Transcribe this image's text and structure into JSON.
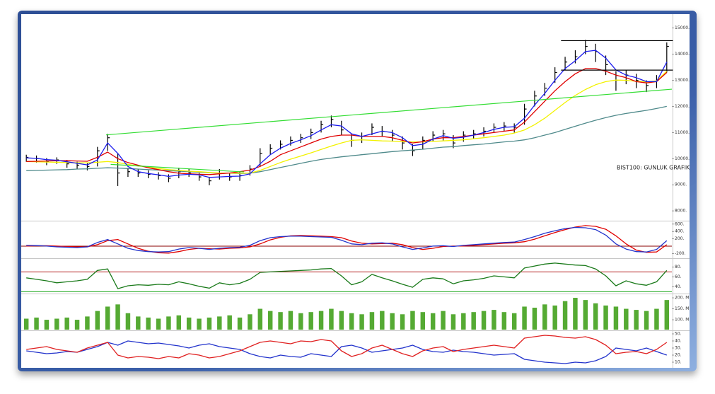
{
  "chart_data": [
    {
      "type": "ohlc",
      "annotation": "BIST100: GUNLUK GRAFIK",
      "color": "#000000",
      "xlim": [
        -0.5,
        63.5
      ],
      "ylim": [
        7650,
        15480
      ],
      "yticks": [
        {
          "value": 15000,
          "label": "15000."
        },
        {
          "value": 14000,
          "label": "14000."
        },
        {
          "value": 13000,
          "label": "13000."
        },
        {
          "value": 12000,
          "label": "12000."
        },
        {
          "value": 11000,
          "label": "11000."
        },
        {
          "value": 10000,
          "label": "10000."
        },
        {
          "value": 9000,
          "label": "9000."
        },
        {
          "value": 8000,
          "label": "8000."
        }
      ],
      "high": [
        10150,
        10120,
        10020,
        10050,
        9950,
        9880,
        9850,
        10450,
        10950,
        10200,
        9650,
        9600,
        9550,
        9480,
        9400,
        9650,
        9600,
        9450,
        9300,
        9600,
        9450,
        9500,
        9750,
        10400,
        10550,
        10700,
        10850,
        10950,
        11150,
        11450,
        11650,
        11450,
        10950,
        11000,
        11350,
        11250,
        11100,
        10850,
        10550,
        10850,
        11050,
        11100,
        10900,
        11050,
        11100,
        11200,
        11350,
        11400,
        11350,
        12100,
        12600,
        12900,
        13500,
        13900,
        14150,
        14550,
        14400,
        13950,
        13350,
        13400,
        13250,
        13000,
        13200,
        14450
      ],
      "low": [
        9880,
        9850,
        9750,
        9800,
        9650,
        9600,
        9550,
        9700,
        10300,
        8950,
        9300,
        9300,
        9250,
        9200,
        9100,
        9250,
        9300,
        9150,
        8980,
        9200,
        9150,
        9150,
        9350,
        9700,
        10150,
        10350,
        10500,
        10600,
        10750,
        11000,
        11200,
        10900,
        10450,
        10600,
        10900,
        10850,
        10650,
        10350,
        10100,
        10350,
        10650,
        10700,
        10400,
        10650,
        10750,
        10850,
        11000,
        11050,
        11000,
        11300,
        12000,
        12400,
        12900,
        13400,
        13650,
        14000,
        13700,
        13200,
        12600,
        12850,
        12700,
        12550,
        12700,
        13300
      ],
      "close": [
        10050,
        10000,
        9900,
        9950,
        9800,
        9750,
        9700,
        10300,
        10800,
        9450,
        9500,
        9450,
        9400,
        9350,
        9250,
        9500,
        9450,
        9300,
        9150,
        9450,
        9300,
        9350,
        9600,
        10200,
        10400,
        10550,
        10700,
        10800,
        11000,
        11300,
        11500,
        11100,
        10700,
        10850,
        11200,
        11050,
        10900,
        10600,
        10300,
        10700,
        10900,
        10950,
        10600,
        10900,
        10950,
        11050,
        11200,
        11250,
        11200,
        11900,
        12400,
        12700,
        13300,
        13700,
        13900,
        14300,
        14100,
        13600,
        13000,
        13200,
        13000,
        12800,
        13000,
        14300
      ],
      "series": [
        {
          "color": "#4f8a8b",
          "values": [
            9540,
            9550,
            9560,
            9570,
            9580,
            9600,
            9610,
            9630,
            9650,
            9640,
            9620,
            9600,
            9580,
            9560,
            9540,
            9520,
            9500,
            9480,
            9460,
            9450,
            9440,
            9430,
            9440,
            9500,
            9580,
            9660,
            9740,
            9820,
            9900,
            9970,
            10020,
            10070,
            10110,
            10150,
            10190,
            10230,
            10270,
            10300,
            10330,
            10360,
            10400,
            10440,
            10460,
            10500,
            10530,
            10560,
            10600,
            10640,
            10670,
            10720,
            10800,
            10900,
            11000,
            11120,
            11240,
            11360,
            11470,
            11570,
            11660,
            11730,
            11790,
            11850,
            11920,
            12000
          ]
        },
        {
          "color": "#f2f200",
          "values": [
            9890,
            9880,
            9870,
            9860,
            9850,
            9840,
            9840,
            9860,
            9890,
            9850,
            9780,
            9720,
            9670,
            9620,
            9580,
            9550,
            9520,
            9500,
            9470,
            9450,
            9440,
            9440,
            9450,
            9550,
            9700,
            9850,
            9980,
            10100,
            10220,
            10350,
            10480,
            10600,
            10700,
            10720,
            10700,
            10680,
            10670,
            10650,
            10640,
            10640,
            10660,
            10680,
            10700,
            10720,
            10760,
            10800,
            10850,
            10900,
            10980,
            11100,
            11300,
            11550,
            11850,
            12150,
            12420,
            12650,
            12830,
            12950,
            13010,
            13000,
            12960,
            12940,
            12980,
            13350
          ]
        },
        {
          "color": "#e00000",
          "values": [
            9890,
            9900,
            9910,
            9920,
            9920,
            9910,
            9900,
            10050,
            10250,
            10000,
            9850,
            9750,
            9650,
            9580,
            9500,
            9440,
            9420,
            9400,
            9390,
            9420,
            9450,
            9500,
            9560,
            9700,
            9900,
            10150,
            10300,
            10450,
            10600,
            10750,
            10850,
            10900,
            10900,
            10850,
            10850,
            10850,
            10800,
            10700,
            10600,
            10650,
            10750,
            10800,
            10800,
            10850,
            10900,
            10950,
            11000,
            11050,
            11100,
            11400,
            11800,
            12200,
            12600,
            12950,
            13250,
            13450,
            13450,
            13350,
            13200,
            13100,
            12950,
            12900,
            12950,
            13300
          ]
        },
        {
          "color": "#1a1aee",
          "values": [
            10030,
            10010,
            9960,
            9940,
            9880,
            9820,
            9760,
            9950,
            10600,
            10200,
            9700,
            9500,
            9430,
            9380,
            9320,
            9370,
            9400,
            9380,
            9280,
            9300,
            9320,
            9330,
            9420,
            9800,
            10150,
            10400,
            10580,
            10720,
            10880,
            11100,
            11300,
            11250,
            10950,
            10850,
            10950,
            11050,
            11000,
            10800,
            10500,
            10550,
            10750,
            10880,
            10780,
            10820,
            10900,
            11000,
            11120,
            11200,
            11220,
            11550,
            12050,
            12500,
            13000,
            13450,
            13750,
            14100,
            14150,
            13850,
            13400,
            13200,
            13100,
            12950,
            12950,
            13700
          ]
        }
      ],
      "trendlines": [
        {
          "color": "#33dd33",
          "x": [
            7.85,
            63.5
          ],
          "y": [
            10910,
            12660
          ]
        },
        {
          "color": "#33dd33",
          "x": [
            8.3,
            21.4
          ],
          "y": [
            9780,
            9490
          ]
        },
        {
          "color": "#000000",
          "x": [
            52.6,
            63.6
          ],
          "y": [
            14520,
            14520
          ]
        },
        {
          "color": "#000000",
          "x": [
            52.6,
            63.6
          ],
          "y": [
            13390,
            13390
          ]
        }
      ]
    },
    {
      "type": "line",
      "xlim": [
        -0.5,
        63.5
      ],
      "ylim": [
        -310,
        655
      ],
      "yticks": [
        {
          "value": 600,
          "label": "600."
        },
        {
          "value": 400,
          "label": "400."
        },
        {
          "value": 200,
          "label": "200."
        },
        {
          "value": -200,
          "label": "-200."
        }
      ],
      "hlines": [
        {
          "value": 0,
          "color": "#8b0000"
        }
      ],
      "series": [
        {
          "color": "#e00000",
          "values": [
            0,
            10,
            10,
            0,
            -10,
            -20,
            -20,
            40,
            150,
            180,
            60,
            -60,
            -140,
            -180,
            -190,
            -150,
            -90,
            -60,
            -70,
            -80,
            -60,
            -50,
            -20,
            60,
            170,
            240,
            280,
            290,
            280,
            270,
            260,
            230,
            140,
            80,
            60,
            70,
            80,
            40,
            -40,
            -90,
            -60,
            -10,
            0,
            0,
            20,
            40,
            60,
            80,
            90,
            120,
            190,
            280,
            370,
            450,
            520,
            560,
            540,
            460,
            280,
            60,
            -110,
            -170,
            -160,
            40
          ]
        },
        {
          "color": "#2233cc",
          "values": [
            20,
            15,
            0,
            -20,
            -30,
            -40,
            -20,
            100,
            180,
            60,
            -60,
            -120,
            -150,
            -160,
            -150,
            -80,
            -40,
            -60,
            -90,
            -60,
            -40,
            -30,
            20,
            150,
            230,
            260,
            270,
            270,
            260,
            250,
            240,
            160,
            60,
            40,
            80,
            90,
            60,
            -20,
            -90,
            -50,
            0,
            10,
            -10,
            20,
            40,
            60,
            80,
            100,
            110,
            180,
            260,
            350,
            420,
            480,
            510,
            500,
            450,
            300,
            60,
            -80,
            -150,
            -160,
            -90,
            150
          ]
        }
      ]
    },
    {
      "type": "line",
      "xlim": [
        -0.5,
        63.5
      ],
      "ylim": [
        27.6,
        95
      ],
      "yticks": [
        {
          "value": 80,
          "label": "80."
        },
        {
          "value": 60,
          "label": "60."
        },
        {
          "value": 40,
          "label": "40."
        }
      ],
      "hlines": [
        {
          "value": 70,
          "color": "#b22222"
        },
        {
          "value": 30,
          "color": "#22aa22"
        }
      ],
      "series": [
        {
          "color": "#1a7a1a",
          "values": [
            58,
            55,
            52,
            48,
            50,
            52,
            55,
            73,
            76,
            36,
            42,
            44,
            43,
            45,
            44,
            50,
            46,
            41,
            37,
            48,
            44,
            47,
            55,
            69,
            70,
            71,
            72,
            73,
            74,
            76,
            77,
            62,
            44,
            50,
            65,
            58,
            52,
            45,
            39,
            55,
            58,
            56,
            46,
            52,
            54,
            57,
            62,
            60,
            58,
            78,
            82,
            86,
            88,
            86,
            84,
            83,
            76,
            62,
            42,
            52,
            46,
            43,
            50,
            73
          ]
        }
      ]
    },
    {
      "type": "bar",
      "xlim": [
        -0.5,
        63.5
      ],
      "ylim": [
        55,
        213
      ],
      "color": "#55aa33",
      "yticks": [
        {
          "value": 200,
          "label": "200. M"
        },
        {
          "value": 150,
          "label": "150. M"
        },
        {
          "value": 100,
          "label": "100. M"
        }
      ],
      "values": [
        105,
        110,
        100,
        105,
        110,
        100,
        115,
        140,
        160,
        170,
        130,
        115,
        110,
        105,
        115,
        120,
        110,
        105,
        110,
        115,
        120,
        110,
        125,
        150,
        140,
        135,
        140,
        130,
        135,
        140,
        150,
        140,
        130,
        125,
        135,
        140,
        130,
        125,
        140,
        135,
        130,
        140,
        125,
        130,
        135,
        140,
        145,
        135,
        130,
        160,
        155,
        170,
        165,
        185,
        200,
        190,
        175,
        165,
        160,
        150,
        145,
        140,
        150,
        190
      ]
    },
    {
      "type": "line",
      "xlim": [
        -0.5,
        63.5
      ],
      "ylim": [
        3,
        53
      ],
      "yticks": [
        {
          "value": 50,
          "label": "50."
        },
        {
          "value": 40,
          "label": "40."
        },
        {
          "value": 30,
          "label": "30."
        },
        {
          "value": 20,
          "label": "20."
        },
        {
          "value": 10,
          "label": "10."
        }
      ],
      "series": [
        {
          "color": "#2233cc",
          "values": [
            26,
            24,
            22,
            23,
            25,
            24,
            28,
            32,
            38,
            34,
            40,
            38,
            36,
            37,
            35,
            33,
            30,
            34,
            36,
            32,
            30,
            28,
            22,
            18,
            16,
            20,
            18,
            17,
            22,
            20,
            18,
            32,
            34,
            30,
            24,
            26,
            28,
            30,
            34,
            28,
            25,
            24,
            27,
            25,
            24,
            22,
            20,
            21,
            22,
            14,
            12,
            10,
            9,
            8,
            10,
            9,
            12,
            18,
            30,
            28,
            26,
            30,
            25,
            20
          ]
        },
        {
          "color": "#e02020",
          "values": [
            28,
            30,
            32,
            28,
            26,
            24,
            30,
            34,
            38,
            20,
            16,
            18,
            17,
            15,
            18,
            16,
            22,
            20,
            16,
            18,
            22,
            26,
            32,
            38,
            40,
            38,
            36,
            40,
            39,
            42,
            40,
            26,
            18,
            22,
            30,
            34,
            28,
            22,
            18,
            26,
            30,
            32,
            25,
            28,
            30,
            32,
            34,
            32,
            30,
            44,
            46,
            48,
            47,
            45,
            44,
            46,
            42,
            34,
            22,
            24,
            25,
            22,
            28,
            38
          ]
        }
      ]
    }
  ]
}
